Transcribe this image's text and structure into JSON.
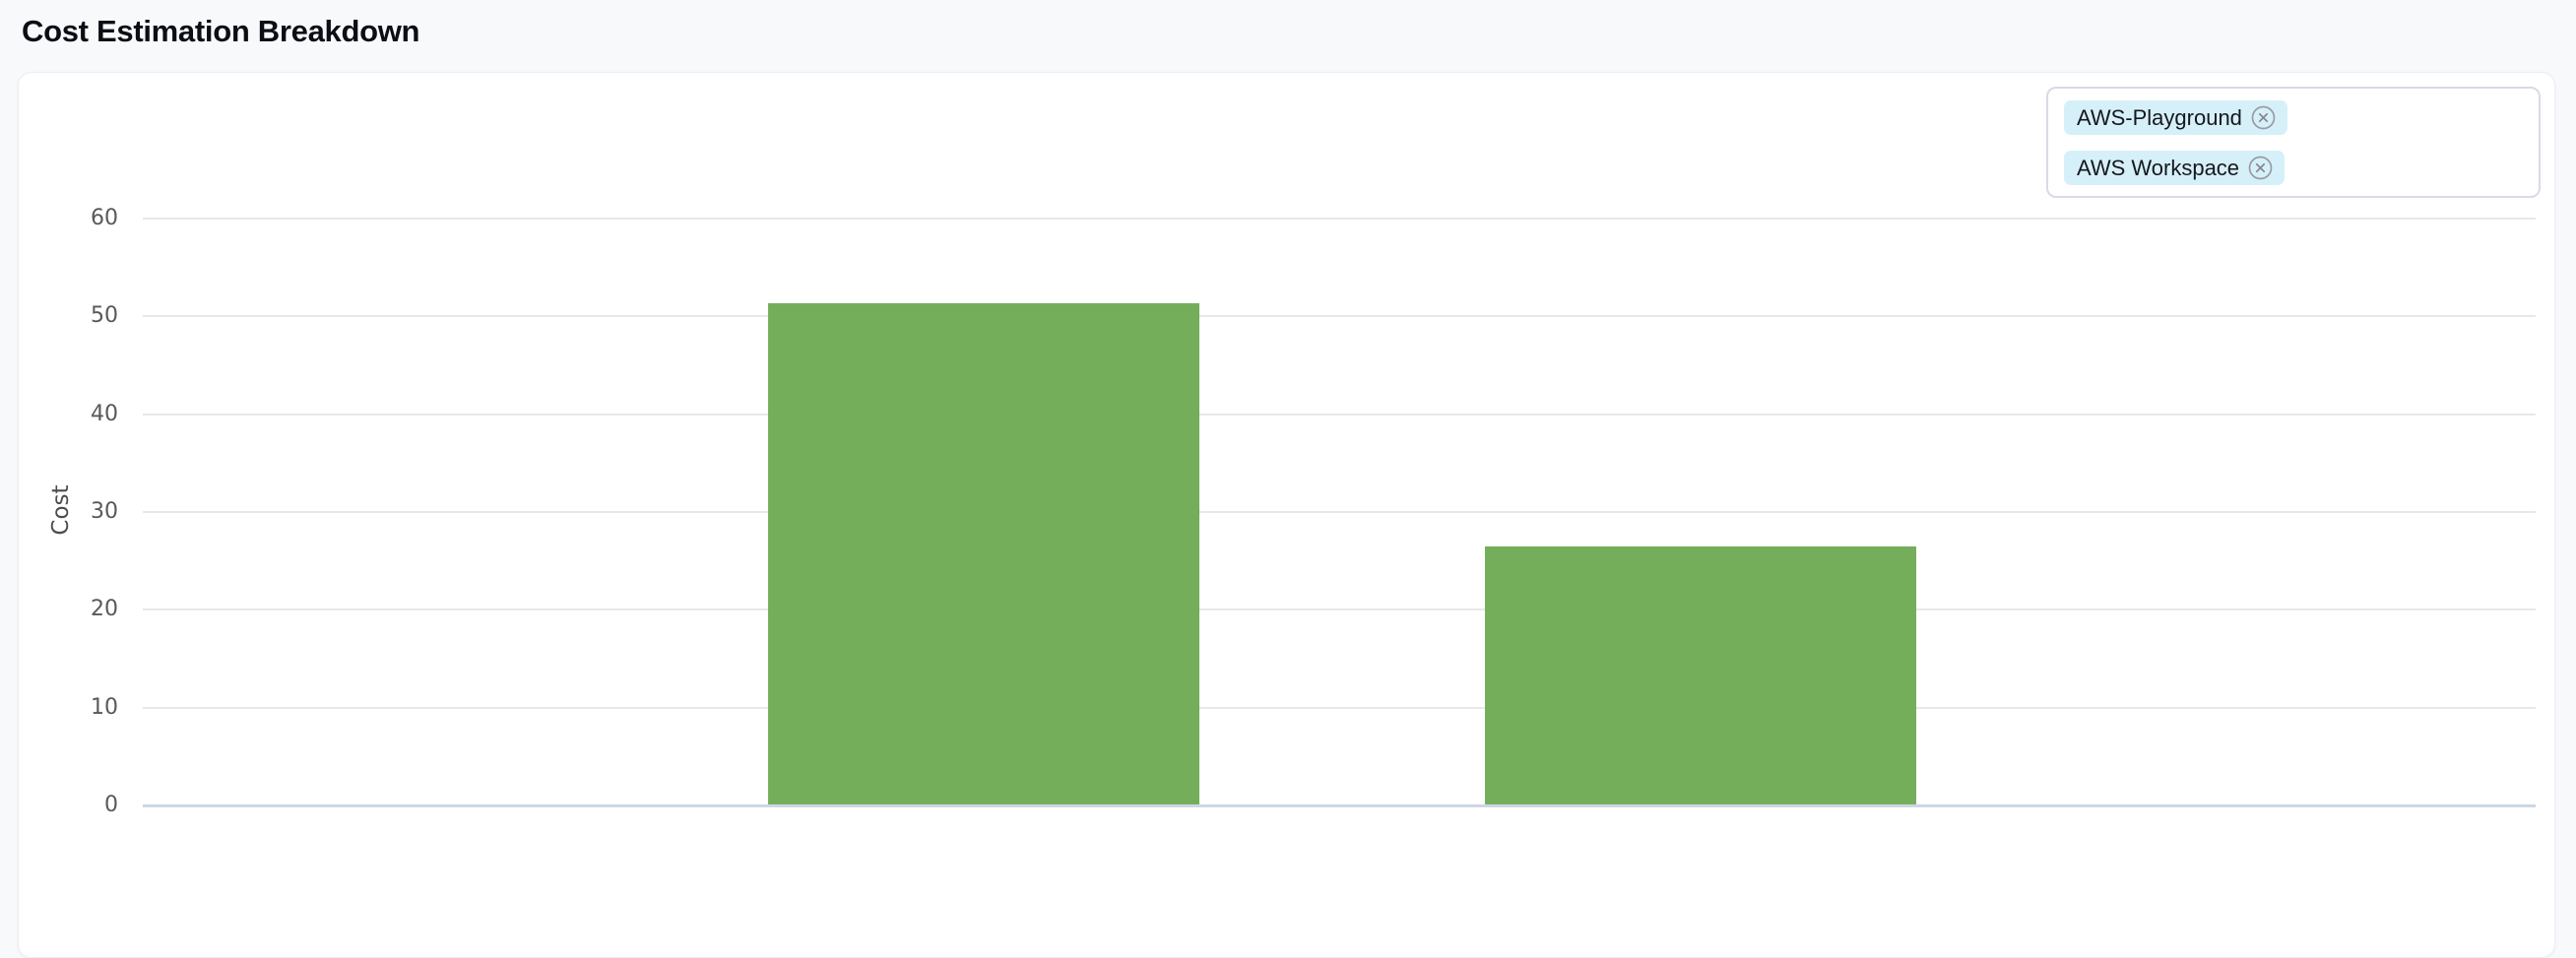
{
  "page": {
    "title": "Cost Estimation Breakdown"
  },
  "legend": {
    "items": [
      {
        "label": "AWS-Playground"
      },
      {
        "label": "AWS Workspace"
      }
    ]
  },
  "chart_data": {
    "type": "bar",
    "title": "Cost Estimation Breakdown",
    "categories": [
      "AWS-Playground",
      "AWS Workspace"
    ],
    "values": [
      51.3,
      26.5
    ],
    "xlabel": "",
    "ylabel": "Cost",
    "ylim": [
      0,
      60
    ],
    "yticks": [
      0,
      10,
      20,
      30,
      40,
      50,
      60
    ],
    "grid": true,
    "x_tick_labels_visible": false,
    "legend_position": "top-right",
    "legend_entries": [
      "AWS-Playground",
      "AWS Workspace"
    ],
    "bar_color": "#74ae5b"
  },
  "colors": {
    "bar": "#74ae5b",
    "chip_background": "#d6f0fa",
    "gridline": "#e8e8e8",
    "axis_line": "#ccd7e5",
    "page_background": "#f8f9fb",
    "card_background": "#ffffff"
  }
}
